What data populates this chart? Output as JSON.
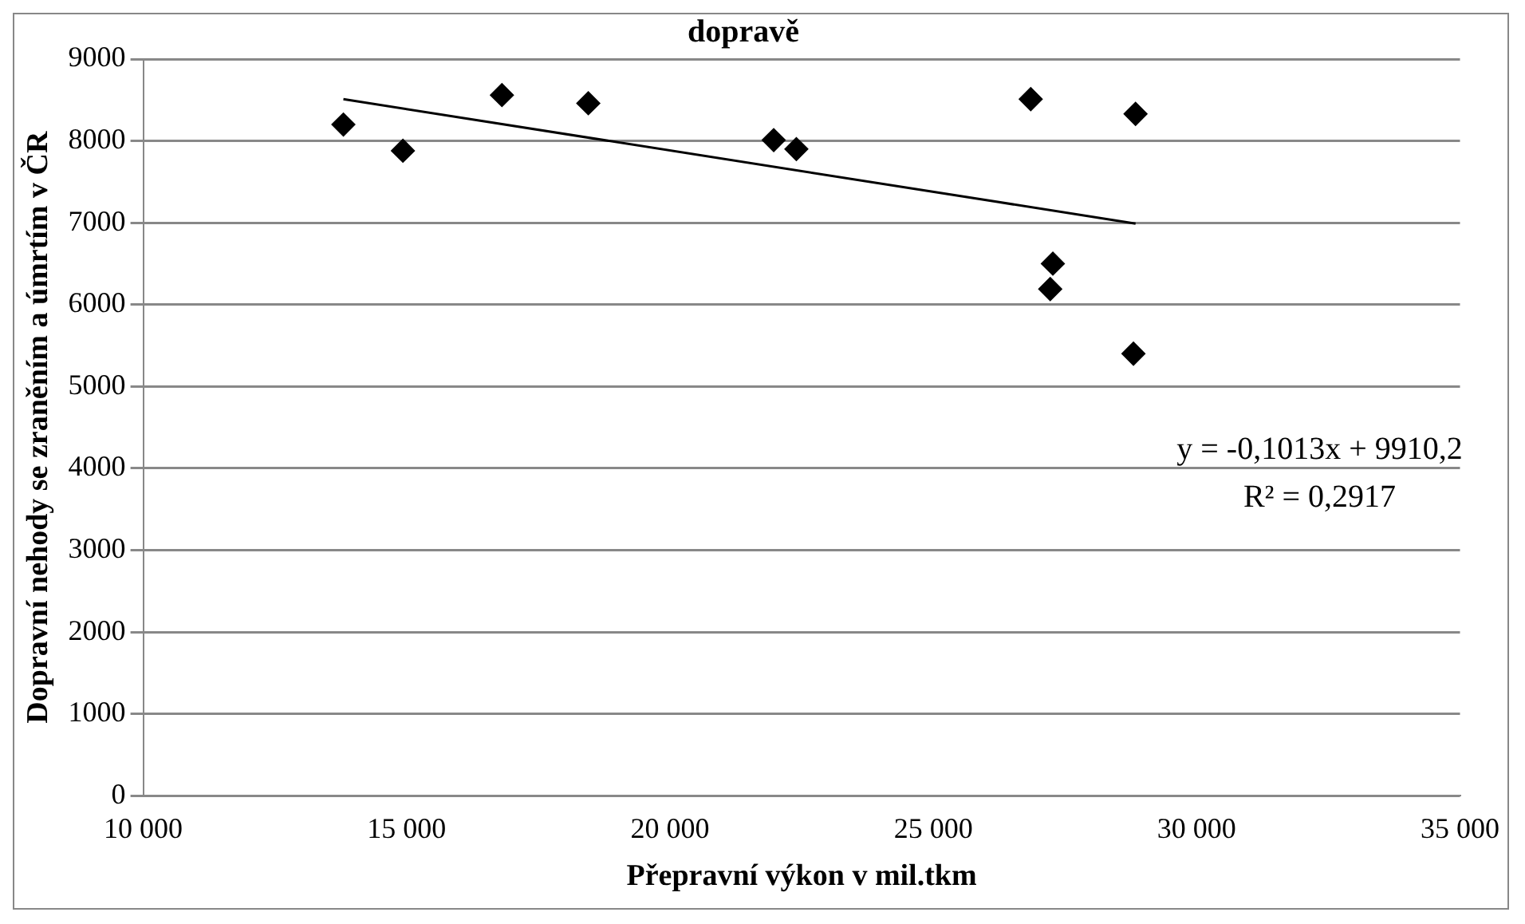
{
  "chart_data": {
    "type": "scatter",
    "title": "dopravě",
    "xlabel": "Přepravní výkon v mil.tkm",
    "ylabel": "Dopravní nehody se zraněním a úmrtím v ČR",
    "series": [
      {
        "color": "#000000",
        "marker": "diamond",
        "x": [
          13800,
          14930,
          16810,
          18450,
          21970,
          22400,
          26850,
          28840,
          27270,
          27220,
          28800
        ],
        "values": [
          8200,
          7880,
          8560,
          8460,
          8010,
          7900,
          8510,
          8330,
          6500,
          6190,
          5400
        ]
      },
      {
        "type": "line",
        "color": "#000000",
        "marker": "none",
        "x": [
          13800,
          28840
        ],
        "values": [
          8510,
          6990
        ]
      }
    ],
    "annotations": [
      "y = -0,1013x + 9910,2",
      "R² = 0,2917"
    ],
    "xlim": [
      10000,
      35000
    ],
    "xticks": [
      {
        "value": 10000,
        "label": "10 000"
      },
      {
        "value": 15000,
        "label": "15 000"
      },
      {
        "value": 20000,
        "label": "20 000"
      },
      {
        "value": 25000,
        "label": "25 000"
      },
      {
        "value": 30000,
        "label": "30 000"
      },
      {
        "value": 35000,
        "label": "35 000"
      }
    ],
    "ylim": [
      0,
      9000
    ],
    "yticks": [
      0,
      1000,
      2000,
      3000,
      4000,
      5000,
      6000,
      7000,
      8000,
      9000
    ],
    "grid": "y",
    "legend": false,
    "line_style": "solid"
  }
}
